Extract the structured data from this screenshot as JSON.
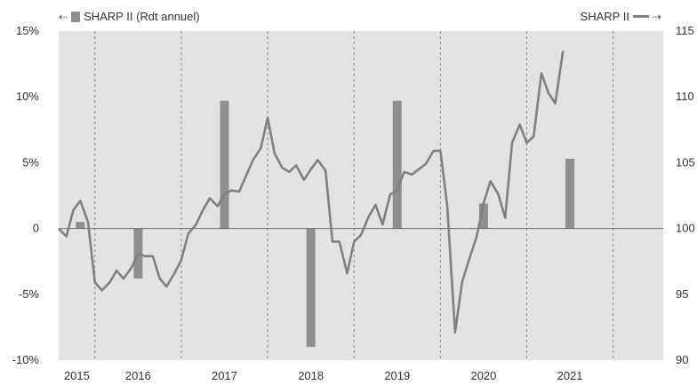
{
  "legend": {
    "bar_series_label": "SHARP II (Rdt annuel)",
    "line_series_label": "SHARP II",
    "left_arrow": "⇠",
    "right_arrow": "⇢"
  },
  "chart_data": {
    "type": "bar+line",
    "title": "",
    "x_year_labels": [
      "2015",
      "2016",
      "2017",
      "2018",
      "2019",
      "2020",
      "2021"
    ],
    "left_axis": {
      "label": "",
      "ylim": [
        -10,
        15
      ],
      "ticks": [
        -10,
        -5,
        0,
        5,
        10,
        15
      ],
      "tick_labels": [
        "-10%",
        "-5%",
        "0",
        "5%",
        "10%",
        "15%"
      ]
    },
    "right_axis": {
      "label": "",
      "ylim": [
        90,
        115
      ],
      "ticks": [
        90,
        95,
        100,
        105,
        110,
        115
      ],
      "tick_labels": [
        "90",
        "95",
        "100",
        "105",
        "110",
        "115"
      ]
    },
    "x_range": [
      2014.58,
      2021.58
    ],
    "year_boundaries": [
      2015.0,
      2016.0,
      2017.0,
      2018.0,
      2019.0,
      2020.0,
      2021.0
    ],
    "grid": {
      "vertical_dashed": true,
      "horizontal": false
    },
    "colors": {
      "bar": "#8f8f8f",
      "line": "#808080",
      "plot_background": "#e3e3e3",
      "baseline": "#707070"
    },
    "series": [
      {
        "name": "SHARP II (Rdt annuel)",
        "kind": "bar",
        "axis": "left",
        "points": [
          {
            "x": 2014.83,
            "y": 0.5
          },
          {
            "x": 2015.5,
            "y": -3.8
          },
          {
            "x": 2016.5,
            "y": 9.7
          },
          {
            "x": 2017.5,
            "y": -9.0
          },
          {
            "x": 2018.5,
            "y": 9.7
          },
          {
            "x": 2019.5,
            "y": 1.9
          },
          {
            "x": 2020.5,
            "y": 5.3
          }
        ]
      },
      {
        "name": "SHARP II",
        "kind": "line",
        "axis": "right",
        "points": [
          [
            2014.58,
            100.0
          ],
          [
            2014.67,
            99.4
          ],
          [
            2014.75,
            101.4
          ],
          [
            2014.83,
            102.1
          ],
          [
            2014.92,
            100.5
          ],
          [
            2015.0,
            95.9
          ],
          [
            2015.08,
            95.3
          ],
          [
            2015.17,
            95.9
          ],
          [
            2015.25,
            96.8
          ],
          [
            2015.33,
            96.2
          ],
          [
            2015.42,
            97.0
          ],
          [
            2015.5,
            98.1
          ],
          [
            2015.58,
            97.9
          ],
          [
            2015.67,
            97.9
          ],
          [
            2015.75,
            96.2
          ],
          [
            2015.83,
            95.6
          ],
          [
            2015.92,
            96.6
          ],
          [
            2016.0,
            97.6
          ],
          [
            2016.08,
            99.6
          ],
          [
            2016.17,
            100.3
          ],
          [
            2016.25,
            101.4
          ],
          [
            2016.33,
            102.3
          ],
          [
            2016.42,
            101.7
          ],
          [
            2016.5,
            102.6
          ],
          [
            2016.58,
            102.9
          ],
          [
            2016.67,
            102.8
          ],
          [
            2016.75,
            104.0
          ],
          [
            2016.83,
            105.2
          ],
          [
            2016.92,
            106.1
          ],
          [
            2017.0,
            108.4
          ],
          [
            2017.08,
            105.7
          ],
          [
            2017.17,
            104.6
          ],
          [
            2017.25,
            104.3
          ],
          [
            2017.33,
            104.8
          ],
          [
            2017.42,
            103.7
          ],
          [
            2017.5,
            104.5
          ],
          [
            2017.58,
            105.2
          ],
          [
            2017.67,
            104.4
          ],
          [
            2017.75,
            99.0
          ],
          [
            2017.83,
            99.0
          ],
          [
            2017.92,
            96.6
          ],
          [
            2018.0,
            99.0
          ],
          [
            2018.08,
            99.5
          ],
          [
            2018.17,
            100.9
          ],
          [
            2018.25,
            101.8
          ],
          [
            2018.33,
            100.3
          ],
          [
            2018.42,
            102.6
          ],
          [
            2018.5,
            102.9
          ],
          [
            2018.58,
            104.3
          ],
          [
            2018.67,
            104.1
          ],
          [
            2018.75,
            104.5
          ],
          [
            2018.83,
            104.9
          ],
          [
            2018.92,
            105.9
          ],
          [
            2019.0,
            105.9
          ],
          [
            2019.08,
            101.7
          ],
          [
            2019.17,
            92.1
          ],
          [
            2019.25,
            95.9
          ],
          [
            2019.33,
            97.6
          ],
          [
            2019.42,
            99.4
          ],
          [
            2019.5,
            101.9
          ],
          [
            2019.58,
            103.6
          ],
          [
            2019.67,
            102.6
          ],
          [
            2019.75,
            100.8
          ],
          [
            2019.83,
            106.5
          ],
          [
            2019.92,
            107.9
          ],
          [
            2020.0,
            106.5
          ],
          [
            2020.08,
            107.0
          ],
          [
            2020.17,
            111.8
          ],
          [
            2020.25,
            110.3
          ],
          [
            2020.33,
            109.5
          ],
          [
            2020.42,
            113.5
          ]
        ]
      }
    ]
  }
}
